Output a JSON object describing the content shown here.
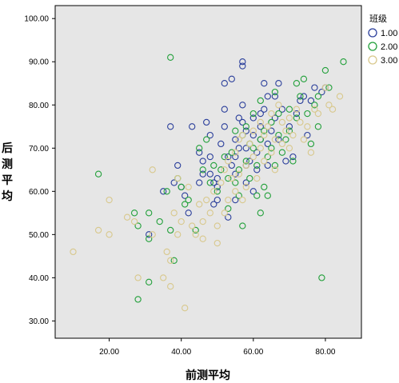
{
  "chart_data": {
    "type": "scatter",
    "xlabel": "前测平均",
    "ylabel": "后测平均",
    "xlim": [
      5,
      90
    ],
    "ylim": [
      26,
      103
    ],
    "x_ticks": [
      "20.00",
      "40.00",
      "60.00",
      "80.00"
    ],
    "x_tick_values": [
      20,
      40,
      60,
      80
    ],
    "y_ticks": [
      "30.00",
      "40.00",
      "50.00",
      "60.00",
      "70.00",
      "80.00",
      "90.00",
      "100.00"
    ],
    "y_tick_values": [
      30,
      40,
      50,
      60,
      70,
      80,
      90,
      100
    ],
    "legend": {
      "title": "班级",
      "placement": "top-right"
    },
    "colors": {
      "plot_background": "#e6e6e6",
      "series_1": "#2b3f9b",
      "series_2": "#22a03a",
      "series_3": "#d8c88c"
    },
    "series": [
      {
        "name": "1.00",
        "points": [
          [
            37,
            75
          ],
          [
            39,
            66
          ],
          [
            43,
            75
          ],
          [
            45,
            69
          ],
          [
            45,
            62
          ],
          [
            46,
            67
          ],
          [
            47,
            76
          ],
          [
            48,
            73
          ],
          [
            46,
            64
          ],
          [
            48,
            64
          ],
          [
            49,
            62
          ],
          [
            50,
            63
          ],
          [
            50,
            61
          ],
          [
            51,
            71
          ],
          [
            52,
            75
          ],
          [
            52,
            85
          ],
          [
            52,
            79
          ],
          [
            53,
            68
          ],
          [
            54,
            86
          ],
          [
            54,
            66
          ],
          [
            55,
            72
          ],
          [
            55,
            64
          ],
          [
            56,
            77
          ],
          [
            56,
            70
          ],
          [
            57,
            80
          ],
          [
            57,
            89
          ],
          [
            57,
            90
          ],
          [
            57,
            76
          ],
          [
            58,
            74
          ],
          [
            58,
            70
          ],
          [
            59,
            67
          ],
          [
            60,
            77
          ],
          [
            60,
            73
          ],
          [
            61,
            65
          ],
          [
            61,
            69
          ],
          [
            62,
            75
          ],
          [
            62,
            78
          ],
          [
            63,
            85
          ],
          [
            63,
            79
          ],
          [
            64,
            82
          ],
          [
            64,
            71
          ],
          [
            64,
            66
          ],
          [
            65,
            74
          ],
          [
            66,
            77
          ],
          [
            67,
            85
          ],
          [
            67,
            72
          ],
          [
            68,
            79
          ],
          [
            69,
            67
          ],
          [
            70,
            75
          ],
          [
            71,
            68
          ],
          [
            72,
            78
          ],
          [
            73,
            81
          ],
          [
            74,
            82
          ],
          [
            75,
            73
          ],
          [
            76,
            81
          ],
          [
            77,
            84
          ],
          [
            79,
            83
          ],
          [
            80,
            84
          ],
          [
            35,
            60
          ],
          [
            38,
            62
          ],
          [
            40,
            61
          ],
          [
            41,
            59
          ],
          [
            42,
            55
          ],
          [
            49,
            57
          ],
          [
            50,
            58
          ],
          [
            53,
            54
          ],
          [
            55,
            58
          ],
          [
            58,
            62
          ],
          [
            60,
            60
          ],
          [
            31,
            50
          ],
          [
            62,
            72
          ],
          [
            66,
            82
          ],
          [
            55,
            68
          ],
          [
            48,
            68
          ],
          [
            58,
            66
          ]
        ]
      },
      {
        "name": "2.00",
        "points": [
          [
            17,
            64
          ],
          [
            27,
            55
          ],
          [
            28,
            35
          ],
          [
            28,
            52
          ],
          [
            31,
            55
          ],
          [
            31,
            49
          ],
          [
            31,
            39
          ],
          [
            34,
            53
          ],
          [
            36,
            60
          ],
          [
            37,
            91
          ],
          [
            37,
            51
          ],
          [
            38,
            44
          ],
          [
            39,
            63
          ],
          [
            40,
            61
          ],
          [
            41,
            57
          ],
          [
            42,
            58
          ],
          [
            44,
            51
          ],
          [
            45,
            70
          ],
          [
            46,
            65
          ],
          [
            47,
            72
          ],
          [
            48,
            62
          ],
          [
            49,
            66
          ],
          [
            50,
            60
          ],
          [
            51,
            65
          ],
          [
            52,
            68
          ],
          [
            53,
            63
          ],
          [
            53,
            56
          ],
          [
            54,
            69
          ],
          [
            55,
            74
          ],
          [
            55,
            62
          ],
          [
            56,
            65
          ],
          [
            56,
            59
          ],
          [
            57,
            73
          ],
          [
            57,
            52
          ],
          [
            58,
            75
          ],
          [
            58,
            67
          ],
          [
            59,
            71
          ],
          [
            59,
            63
          ],
          [
            60,
            78
          ],
          [
            60,
            70
          ],
          [
            61,
            66
          ],
          [
            61,
            59
          ],
          [
            62,
            72
          ],
          [
            62,
            55
          ],
          [
            62,
            81
          ],
          [
            63,
            74
          ],
          [
            63,
            61
          ],
          [
            64,
            68
          ],
          [
            64,
            59
          ],
          [
            65,
            76
          ],
          [
            65,
            70
          ],
          [
            66,
            83
          ],
          [
            66,
            66
          ],
          [
            67,
            78
          ],
          [
            67,
            73
          ],
          [
            68,
            69
          ],
          [
            69,
            72
          ],
          [
            70,
            74
          ],
          [
            70,
            79
          ],
          [
            71,
            67
          ],
          [
            72,
            85
          ],
          [
            72,
            77
          ],
          [
            73,
            82
          ],
          [
            74,
            86
          ],
          [
            75,
            78
          ],
          [
            76,
            71
          ],
          [
            77,
            80
          ],
          [
            78,
            75
          ],
          [
            78,
            82
          ],
          [
            79,
            40
          ],
          [
            80,
            88
          ],
          [
            81,
            84
          ],
          [
            85,
            90
          ]
        ]
      },
      {
        "name": "3.00",
        "points": [
          [
            10,
            46
          ],
          [
            17,
            51
          ],
          [
            20,
            58
          ],
          [
            20,
            50
          ],
          [
            25,
            54
          ],
          [
            27,
            53
          ],
          [
            28,
            40
          ],
          [
            32,
            65
          ],
          [
            32,
            50
          ],
          [
            35,
            40
          ],
          [
            36,
            46
          ],
          [
            37,
            38
          ],
          [
            37,
            44
          ],
          [
            38,
            55
          ],
          [
            39,
            50
          ],
          [
            39,
            63
          ],
          [
            40,
            53
          ],
          [
            41,
            33
          ],
          [
            42,
            61
          ],
          [
            43,
            52
          ],
          [
            44,
            50
          ],
          [
            45,
            57
          ],
          [
            46,
            53
          ],
          [
            46,
            49
          ],
          [
            47,
            58
          ],
          [
            48,
            55
          ],
          [
            49,
            60
          ],
          [
            50,
            52
          ],
          [
            50,
            48
          ],
          [
            51,
            62
          ],
          [
            52,
            65
          ],
          [
            52,
            55
          ],
          [
            53,
            58
          ],
          [
            53,
            67
          ],
          [
            54,
            63
          ],
          [
            55,
            69
          ],
          [
            55,
            60
          ],
          [
            56,
            72
          ],
          [
            56,
            64
          ],
          [
            57,
            58
          ],
          [
            57,
            73
          ],
          [
            58,
            66
          ],
          [
            58,
            61
          ],
          [
            59,
            71
          ],
          [
            60,
            74
          ],
          [
            60,
            68
          ],
          [
            61,
            63
          ],
          [
            62,
            76
          ],
          [
            62,
            70
          ],
          [
            63,
            67
          ],
          [
            63,
            73
          ],
          [
            64,
            75
          ],
          [
            65,
            78
          ],
          [
            65,
            69
          ],
          [
            66,
            72
          ],
          [
            66,
            65
          ],
          [
            67,
            80
          ],
          [
            68,
            76
          ],
          [
            68,
            71
          ],
          [
            69,
            74
          ],
          [
            70,
            70
          ],
          [
            70,
            77
          ],
          [
            71,
            73
          ],
          [
            72,
            79
          ],
          [
            73,
            76
          ],
          [
            74,
            72
          ],
          [
            75,
            75
          ],
          [
            76,
            69
          ],
          [
            77,
            79
          ],
          [
            78,
            78
          ],
          [
            80,
            84
          ],
          [
            81,
            80
          ],
          [
            84,
            82
          ],
          [
            82,
            79
          ]
        ]
      }
    ]
  }
}
